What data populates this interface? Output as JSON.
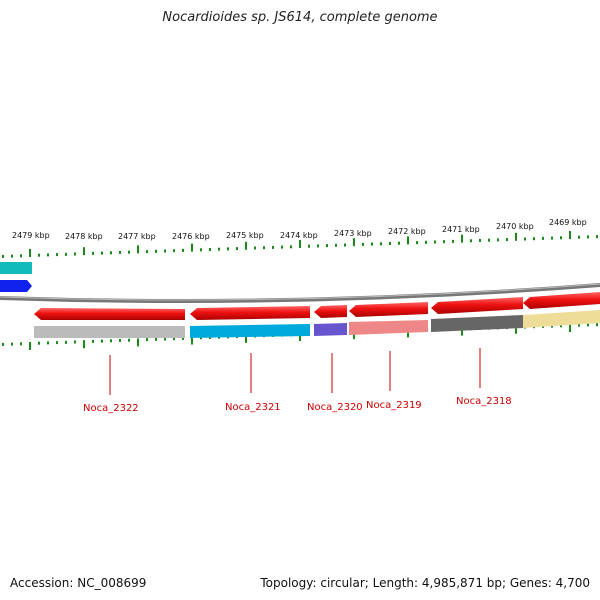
{
  "header": {
    "title": "Nocardioides sp. JS614, complete genome"
  },
  "footer": {
    "accession": "Accession: NC_008699",
    "summary": "Topology: circular; Length: 4,985,871 bp; Genes: 4,700"
  },
  "colors": {
    "forward_gene": "#ee1111",
    "backbone": "#777777",
    "tick": "#1a8a1a",
    "label": "#cc0000"
  },
  "ruler": {
    "unit": "kbp",
    "labels": [
      "2479 kbp",
      "2478 kbp",
      "2477 kbp",
      "2476 kbp",
      "2475 kbp",
      "2474 kbp",
      "2473 kbp",
      "2472 kbp",
      "2471 kbp",
      "2470 kbp",
      "2469 kbp"
    ]
  },
  "genes": [
    {
      "name": "Noca_2322",
      "strand_color": "#bbbbbb"
    },
    {
      "name": "Noca_2321",
      "strand_color": "#00aadd"
    },
    {
      "name": "Noca_2320",
      "strand_color": "#6655cc"
    },
    {
      "name": "Noca_2319",
      "strand_color": "#ee8888"
    },
    {
      "name": "Noca_2318",
      "strand_color": "#666666"
    },
    {
      "name": "",
      "strand_color": "#eedd99"
    }
  ],
  "edge_features": [
    {
      "name": "",
      "color": "#11bbbb"
    },
    {
      "name": "",
      "color": "#1122ee"
    }
  ]
}
